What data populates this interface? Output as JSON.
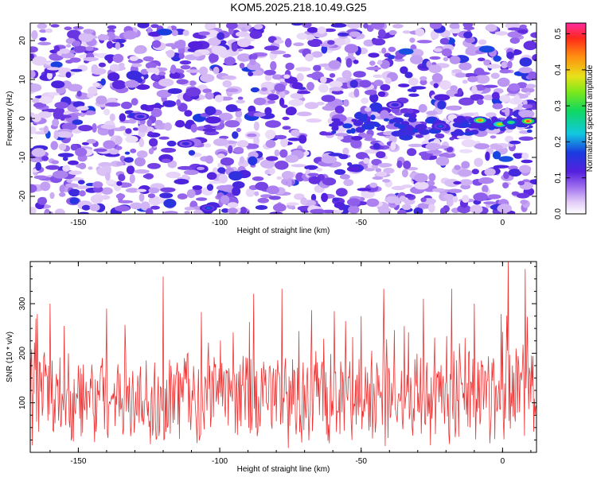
{
  "title": "KOM5.2025.218.10.49.G25",
  "colors": {
    "signal": "#ee3333",
    "background": "#ffffff",
    "axis": "#000000"
  },
  "chart_data": [
    {
      "type": "heatmap",
      "title": "KOM5.2025.218.10.49.G25",
      "xlabel": "Height of straight line (km)",
      "ylabel": "Frequency (Hz)",
      "xlim": [
        -167,
        12
      ],
      "ylim": [
        -24.5,
        24.5
      ],
      "x_ticks": [
        -150,
        -100,
        -50,
        0
      ],
      "y_ticks": [
        -20,
        -10,
        0,
        10,
        20
      ],
      "colorbar": {
        "label": "Normalized spectral amplitude",
        "range": [
          0,
          0.53
        ],
        "ticks": [
          "0.0",
          "0.1",
          "0.2",
          "0.3",
          "0.4",
          "0.5"
        ],
        "tick_values": [
          0.0,
          0.1,
          0.2,
          0.3,
          0.4,
          0.5
        ]
      },
      "hotspots": [
        {
          "x": -8,
          "y": -0.5,
          "value": 0.45
        },
        {
          "x": -1,
          "y": -1.5,
          "value": 0.4
        },
        {
          "x": 3,
          "y": -1,
          "value": 0.3
        },
        {
          "x": 9,
          "y": -0.7,
          "value": 0.5
        },
        {
          "x": -22,
          "y": -2,
          "value": 0.18
        },
        {
          "x": -104,
          "y": -23,
          "value": 0.18
        },
        {
          "x": -128,
          "y": 0.5,
          "value": 0.15
        },
        {
          "x": -112,
          "y": -6.5,
          "value": 0.15
        },
        {
          "x": -38,
          "y": 3.5,
          "value": 0.15
        }
      ]
    },
    {
      "type": "line",
      "title": "",
      "xlabel": "Height of straight line (km)",
      "ylabel": "SNR (10 * v/v)",
      "xlim": [
        -167,
        12
      ],
      "ylim": [
        0,
        385
      ],
      "x_ticks": [
        -150,
        -100,
        -50,
        0
      ],
      "y_ticks": [
        100,
        200,
        300
      ],
      "series": [
        {
          "name": "SNR",
          "color": "#ee3333",
          "x_step": 0.25,
          "mean_trend": [
            [
              -167,
              110
            ],
            [
              -100,
              108
            ],
            [
              -50,
              112
            ],
            [
              12,
              128
            ]
          ],
          "peaks": [
            [
              -165,
              270
            ],
            [
              -160,
              300
            ],
            [
              -155,
              255
            ],
            [
              -140,
              290
            ],
            [
              -120,
              355
            ],
            [
              -88,
              320
            ],
            [
              -78,
              330
            ],
            [
              -50,
              275
            ],
            [
              -42,
              330
            ],
            [
              -28,
              310
            ],
            [
              -18,
              330
            ],
            [
              -10,
              300
            ],
            [
              2,
              385
            ],
            [
              8,
              370
            ]
          ]
        }
      ]
    }
  ]
}
